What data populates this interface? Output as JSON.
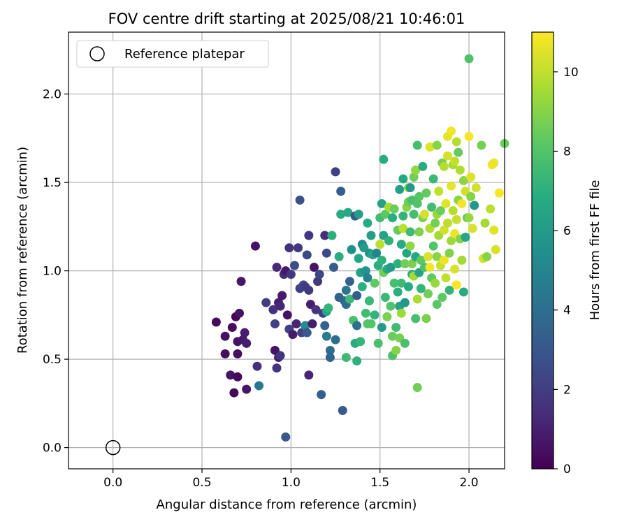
{
  "chart_data": {
    "type": "scatter",
    "title": "FOV centre drift starting at 2025/08/21 10:46:01",
    "xlabel": "Angular distance from reference (arcmin)",
    "ylabel": "Rotation from reference (arcmin)",
    "xlim": [
      -0.25,
      2.2
    ],
    "ylim": [
      -0.12,
      2.35
    ],
    "x_ticks": [
      "0.0",
      "0.5",
      "1.0",
      "1.5",
      "2.0"
    ],
    "y_ticks": [
      "0.0",
      "0.5",
      "1.0",
      "1.5",
      "2.0"
    ],
    "grid": true,
    "legend": {
      "placement": "top-left",
      "entries": [
        "Reference platepar"
      ]
    },
    "colorbar": {
      "label": "Hours from first FF file",
      "range": [
        0,
        11
      ],
      "ticks": [
        "0",
        "2",
        "4",
        "6",
        "8",
        "10"
      ],
      "colormap": "viridis"
    },
    "reference_point": {
      "x": 0.0,
      "y": 0.0
    },
    "points": [
      [
        0.58,
        0.71,
        0.3
      ],
      [
        0.63,
        0.63,
        0.5
      ],
      [
        0.63,
        0.53,
        0.4
      ],
      [
        0.66,
        0.41,
        0.6
      ],
      [
        0.67,
        0.68,
        0.4
      ],
      [
        0.68,
        0.31,
        0.2
      ],
      [
        0.69,
        0.74,
        0.1
      ],
      [
        0.7,
        0.6,
        0.5
      ],
      [
        0.7,
        0.53,
        0.4
      ],
      [
        0.71,
        0.76,
        0.6
      ],
      [
        0.7,
        0.4,
        0.3
      ],
      [
        0.72,
        0.94,
        0.7
      ],
      [
        0.73,
        0.61,
        0.8
      ],
      [
        0.74,
        0.65,
        0.9
      ],
      [
        0.75,
        0.59,
        1.0
      ],
      [
        0.75,
        0.33,
        0.7
      ],
      [
        0.8,
        1.14,
        0.5
      ],
      [
        0.81,
        0.46,
        1.5
      ],
      [
        0.82,
        0.35,
        4.5
      ],
      [
        0.86,
        0.82,
        2.0
      ],
      [
        0.9,
        0.78,
        1.6
      ],
      [
        0.91,
        0.7,
        2.2
      ],
      [
        0.91,
        0.55,
        0.6
      ],
      [
        0.92,
        1.02,
        1.3
      ],
      [
        0.93,
        0.51,
        0.9
      ],
      [
        0.92,
        0.45,
        1.7
      ],
      [
        0.93,
        0.82,
        1.0
      ],
      [
        0.94,
        0.8,
        1.2
      ],
      [
        0.94,
        0.52,
        1.8
      ],
      [
        0.95,
        0.86,
        0.8
      ],
      [
        0.96,
        0.98,
        1.4
      ],
      [
        0.97,
        1.0,
        0.8
      ],
      [
        0.97,
        0.06,
        3.0
      ],
      [
        0.98,
        0.75,
        0.6
      ],
      [
        0.99,
        0.67,
        2.2
      ],
      [
        0.99,
        1.13,
        1.6
      ],
      [
        1.0,
        0.98,
        1.9
      ],
      [
        1.01,
        0.64,
        0.9
      ],
      [
        1.02,
        1.03,
        2.6
      ],
      [
        1.03,
        0.7,
        1.2
      ],
      [
        1.04,
        1.13,
        1.8
      ],
      [
        1.05,
        0.9,
        2.2
      ],
      [
        1.05,
        1.4,
        2.8
      ],
      [
        1.06,
        0.65,
        2.1
      ],
      [
        1.07,
        0.92,
        2.5
      ],
      [
        1.08,
        0.69,
        5.4
      ],
      [
        1.08,
        0.91,
        2.0
      ],
      [
        1.09,
        1.09,
        2.4
      ],
      [
        1.09,
        0.65,
        3.1
      ],
      [
        1.1,
        0.41,
        1.2
      ],
      [
        1.1,
        0.89,
        1.9
      ],
      [
        1.1,
        1.2,
        1.8
      ],
      [
        1.11,
        0.81,
        1.0
      ],
      [
        1.12,
        0.7,
        0.9
      ],
      [
        1.13,
        1.02,
        0.6
      ],
      [
        1.14,
        0.78,
        1.7
      ],
      [
        1.15,
        0.94,
        1.9
      ],
      [
        1.16,
        0.98,
        2.3
      ],
      [
        1.17,
        0.3,
        3.4
      ],
      [
        1.18,
        0.76,
        2.0
      ],
      [
        1.19,
        0.69,
        3.5
      ],
      [
        1.19,
        1.2,
        1.5
      ],
      [
        1.2,
        0.63,
        4.6
      ],
      [
        1.2,
        0.77,
        6.6
      ],
      [
        1.2,
        1.1,
        2.5
      ],
      [
        1.21,
        0.79,
        7.2
      ],
      [
        1.22,
        0.55,
        3.9
      ],
      [
        1.22,
        0.51,
        3.6
      ],
      [
        1.23,
        1.2,
        7.0
      ],
      [
        1.24,
        1.02,
        3.3
      ],
      [
        1.25,
        0.61,
        4.0
      ],
      [
        1.25,
        1.56,
        2.1
      ],
      [
        1.27,
        1.08,
        6.9
      ],
      [
        1.27,
        0.85,
        3.4
      ],
      [
        1.28,
        1.45,
        3.3
      ],
      [
        1.28,
        1.32,
        6.8
      ],
      [
        1.29,
        0.21,
        3.1
      ],
      [
        1.3,
        0.83,
        3.7
      ],
      [
        1.31,
        0.89,
        4.3
      ],
      [
        1.31,
        0.81,
        4.0
      ],
      [
        1.31,
        0.51,
        7.5
      ],
      [
        1.32,
        1.33,
        6.7
      ],
      [
        1.33,
        0.94,
        3.5
      ],
      [
        1.33,
        0.84,
        7.4
      ],
      [
        1.34,
        1.12,
        5.5
      ],
      [
        1.35,
        0.72,
        7.8
      ],
      [
        1.36,
        1.31,
        3.0
      ],
      [
        1.36,
        0.59,
        6.9
      ],
      [
        1.37,
        0.86,
        3.3
      ],
      [
        1.37,
        0.69,
        4.1
      ],
      [
        1.37,
        0.49,
        7.1
      ],
      [
        1.38,
        1.32,
        6.1
      ],
      [
        1.38,
        1.07,
        6.6
      ],
      [
        1.39,
        0.99,
        6.3
      ],
      [
        1.39,
        0.6,
        7.3
      ],
      [
        1.4,
        0.91,
        7.0
      ],
      [
        1.4,
        1.15,
        5.3
      ],
      [
        1.41,
        1.13,
        6.0
      ],
      [
        1.42,
        1.0,
        5.6
      ],
      [
        1.42,
        0.76,
        7.6
      ],
      [
        1.43,
        1.27,
        6.8
      ],
      [
        1.43,
        0.96,
        4.9
      ],
      [
        1.43,
        0.7,
        8.1
      ],
      [
        1.44,
        1.1,
        5.8
      ],
      [
        1.44,
        0.83,
        7.4
      ],
      [
        1.45,
        1.2,
        6.2
      ],
      [
        1.45,
        0.7,
        8.0
      ],
      [
        1.46,
        1.09,
        6.5
      ],
      [
        1.47,
        0.75,
        7.2
      ],
      [
        1.47,
        0.93,
        8.3
      ],
      [
        1.48,
        1.1,
        5.0
      ],
      [
        1.49,
        1.03,
        6.9
      ],
      [
        1.49,
        0.59,
        7.8
      ],
      [
        1.5,
        1.15,
        9.9
      ],
      [
        1.5,
        1.3,
        7.6
      ],
      [
        1.51,
        1.38,
        6.4
      ],
      [
        1.51,
        1.06,
        7.1
      ],
      [
        1.51,
        0.68,
        6.0
      ],
      [
        1.52,
        1.63,
        6.8
      ],
      [
        1.52,
        1.2,
        6.3
      ],
      [
        1.52,
        0.99,
        8.6
      ],
      [
        1.53,
        1.32,
        8.2
      ],
      [
        1.53,
        0.85,
        7.4
      ],
      [
        1.54,
        0.74,
        8.8
      ],
      [
        1.54,
        1.01,
        6.7
      ],
      [
        1.55,
        1.17,
        7.1
      ],
      [
        1.55,
        1.36,
        9.6
      ],
      [
        1.56,
        1.02,
        6.0
      ],
      [
        1.56,
        0.8,
        8.0
      ],
      [
        1.57,
        0.63,
        8.5
      ],
      [
        1.57,
        0.52,
        7.9
      ],
      [
        1.57,
        1.3,
        6.9
      ],
      [
        1.58,
        1.35,
        8.5
      ],
      [
        1.58,
        0.93,
        7.7
      ],
      [
        1.59,
        0.68,
        7.6
      ],
      [
        1.59,
        0.55,
        9.0
      ],
      [
        1.6,
        1.23,
        8.4
      ],
      [
        1.6,
        1.04,
        7.0
      ],
      [
        1.6,
        0.88,
        7.0
      ],
      [
        1.61,
        1.46,
        6.2
      ],
      [
        1.61,
        0.62,
        8.7
      ],
      [
        1.61,
        0.8,
        6.4
      ],
      [
        1.62,
        1.15,
        6.8
      ],
      [
        1.62,
        0.93,
        7.5
      ],
      [
        1.62,
        0.76,
        9.4
      ],
      [
        1.63,
        1.52,
        6.7
      ],
      [
        1.63,
        1.31,
        7.2
      ],
      [
        1.63,
        1.24,
        9.9
      ],
      [
        1.64,
        1.04,
        8.6
      ],
      [
        1.64,
        0.82,
        5.9
      ],
      [
        1.64,
        0.59,
        7.8
      ],
      [
        1.65,
        1.1,
        6.6
      ],
      [
        1.65,
        1.36,
        9.0
      ],
      [
        1.66,
        1.39,
        8.5
      ],
      [
        1.66,
        1.47,
        9.3
      ],
      [
        1.66,
        0.91,
        6.8
      ],
      [
        1.67,
        1.22,
        7.5
      ],
      [
        1.67,
        1.47,
        6.0
      ],
      [
        1.67,
        1.14,
        9.2
      ],
      [
        1.68,
        0.98,
        7.0
      ],
      [
        1.68,
        1.4,
        7.8
      ],
      [
        1.68,
        1.04,
        8.8
      ],
      [
        1.69,
        1.53,
        8.6
      ],
      [
        1.69,
        1.32,
        7.6
      ],
      [
        1.69,
        0.97,
        9.5
      ],
      [
        1.7,
        1.57,
        9.2
      ],
      [
        1.7,
        1.08,
        6.7
      ],
      [
        1.7,
        0.73,
        7.7
      ],
      [
        1.71,
        1.71,
        7.7
      ],
      [
        1.71,
        1.38,
        8.0
      ],
      [
        1.71,
        0.84,
        9.6
      ],
      [
        1.71,
        0.34,
        8.6
      ],
      [
        1.72,
        1.22,
        8.9
      ],
      [
        1.72,
        1.42,
        8.1
      ],
      [
        1.72,
        0.99,
        6.5
      ],
      [
        1.73,
        1.06,
        8.3
      ],
      [
        1.73,
        0.9,
        7.2
      ],
      [
        1.74,
        1.3,
        8.9
      ],
      [
        1.74,
        1.59,
        6.8
      ],
      [
        1.75,
        1.32,
        10.3
      ],
      [
        1.75,
        1.02,
        7.9
      ],
      [
        1.76,
        1.44,
        8.4
      ],
      [
        1.76,
        0.73,
        8.8
      ],
      [
        1.77,
        1.08,
        10.4
      ],
      [
        1.77,
        0.87,
        8.6
      ],
      [
        1.78,
        1.7,
        10.5
      ],
      [
        1.78,
        1.24,
        9.7
      ],
      [
        1.78,
        1.02,
        10.8
      ],
      [
        1.79,
        1.36,
        7.6
      ],
      [
        1.79,
        0.96,
        8.3
      ],
      [
        1.8,
        1.52,
        7.4
      ],
      [
        1.8,
        1.14,
        8.0
      ],
      [
        1.81,
        1.27,
        8.7
      ],
      [
        1.81,
        0.93,
        9.3
      ],
      [
        1.82,
        1.71,
        9.0
      ],
      [
        1.82,
        1.32,
        9.3
      ],
      [
        1.82,
        1.08,
        9.1
      ],
      [
        1.82,
        0.81,
        8.2
      ],
      [
        1.83,
        1.45,
        10.0
      ],
      [
        1.83,
        1.2,
        9.5
      ],
      [
        1.84,
        1.03,
        10.1
      ],
      [
        1.84,
        1.34,
        8.5
      ],
      [
        1.85,
        1.61,
        8.7
      ],
      [
        1.85,
        0.85,
        8.3
      ],
      [
        1.86,
        1.23,
        10.2
      ],
      [
        1.86,
        1.59,
        9.8
      ],
      [
        1.86,
        1.06,
        10.7
      ],
      [
        1.87,
        1.38,
        10.5
      ],
      [
        1.87,
        0.96,
        10.0
      ],
      [
        1.88,
        1.76,
        10.6
      ],
      [
        1.88,
        1.65,
        10.3
      ],
      [
        1.88,
        1.27,
        9.9
      ],
      [
        1.89,
        1.1,
        8.9
      ],
      [
        1.89,
        0.89,
        7.2
      ],
      [
        1.9,
        1.48,
        10.6
      ],
      [
        1.9,
        1.79,
        10.8
      ],
      [
        1.9,
        1.17,
        9.4
      ],
      [
        1.91,
        1.6,
        9.6
      ],
      [
        1.91,
        1.34,
        9.8
      ],
      [
        1.92,
        1.62,
        10.0
      ],
      [
        1.92,
        1.01,
        10.4
      ],
      [
        1.92,
        1.21,
        10.7
      ],
      [
        1.93,
        1.29,
        10.1
      ],
      [
        1.93,
        0.92,
        10.9
      ],
      [
        1.93,
        1.73,
        9.8
      ],
      [
        1.94,
        1.67,
        8.4
      ],
      [
        1.94,
        1.4,
        9.1
      ],
      [
        1.95,
        1.57,
        9.7
      ],
      [
        1.95,
        1.18,
        9.0
      ],
      [
        1.96,
        1.06,
        9.5
      ],
      [
        1.96,
        1.38,
        10.8
      ],
      [
        1.97,
        1.51,
        9.1
      ],
      [
        1.97,
        0.88,
        6.8
      ],
      [
        1.98,
        1.45,
        10.2
      ],
      [
        1.98,
        1.19,
        6.6
      ],
      [
        1.99,
        1.3,
        8.1
      ],
      [
        2.0,
        2.2,
        7.9
      ],
      [
        2.0,
        1.76,
        10.9
      ],
      [
        2.0,
        1.3,
        9.3
      ],
      [
        2.01,
        1.53,
        10.5
      ],
      [
        2.01,
        1.42,
        9.0
      ],
      [
        2.02,
        1.24,
        10.4
      ],
      [
        2.03,
        1.37,
        5.8
      ],
      [
        2.04,
        1.47,
        10.2
      ],
      [
        2.07,
        1.71,
        8.7
      ],
      [
        2.08,
        1.07,
        10.3
      ],
      [
        2.09,
        1.27,
        9.5
      ],
      [
        2.1,
        1.08,
        9.0
      ],
      [
        2.12,
        1.35,
        9.9
      ],
      [
        2.13,
        1.6,
        10.8
      ],
      [
        2.14,
        1.23,
        10.5
      ],
      [
        2.15,
        1.12,
        10.4
      ],
      [
        2.17,
        1.44,
        10.9
      ],
      [
        2.14,
        1.61,
        10.7
      ],
      [
        2.2,
        1.72,
        8.5
      ]
    ]
  }
}
